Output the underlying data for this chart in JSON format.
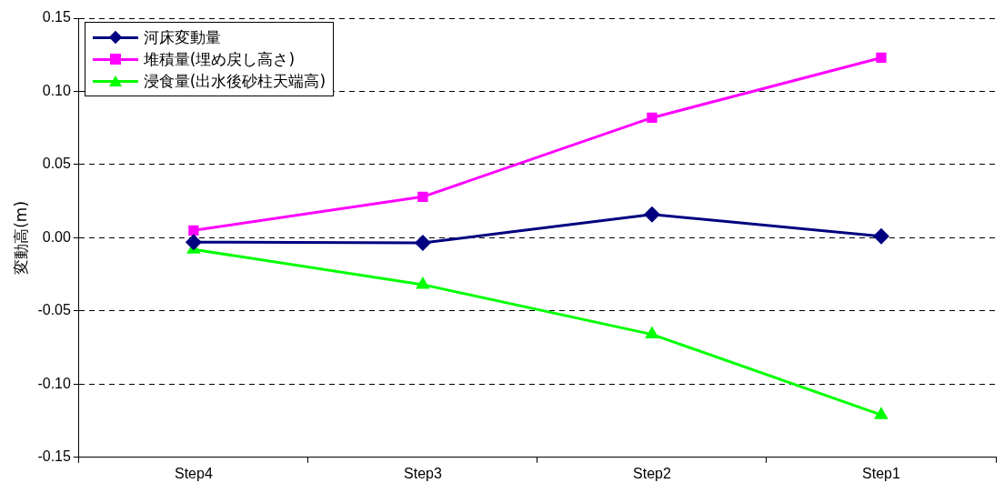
{
  "chart_data": {
    "type": "line",
    "ylabel": "変動高(m)",
    "categories": [
      "Step4",
      "Step3",
      "Step2",
      "Step1"
    ],
    "series": [
      {
        "name": "河床変動量",
        "color": "#000080",
        "marker": "diamond",
        "values": [
          -0.003,
          -0.0035,
          0.016,
          0.001
        ]
      },
      {
        "name": "堆積量(埋め戻し高さ)",
        "color": "#ff00ff",
        "marker": "square",
        "values": [
          0.005,
          0.028,
          0.082,
          0.123
        ]
      },
      {
        "name": "浸食量(出水後砂柱天端高)",
        "color": "#00ff00",
        "marker": "triangle",
        "values": [
          -0.008,
          -0.032,
          -0.066,
          -0.121
        ]
      }
    ],
    "ylim": [
      -0.15,
      0.15
    ],
    "yticks": [
      -0.15,
      {
        "value": -0.1,
        "label": "-0.10"
      },
      -0.05,
      {
        "value": 0,
        "label": "0.00"
      },
      0.05,
      {
        "value": 0.1,
        "label": "0.10"
      },
      0.15
    ],
    "grid": "y",
    "legend": "top left",
    "line_style": "solid"
  }
}
